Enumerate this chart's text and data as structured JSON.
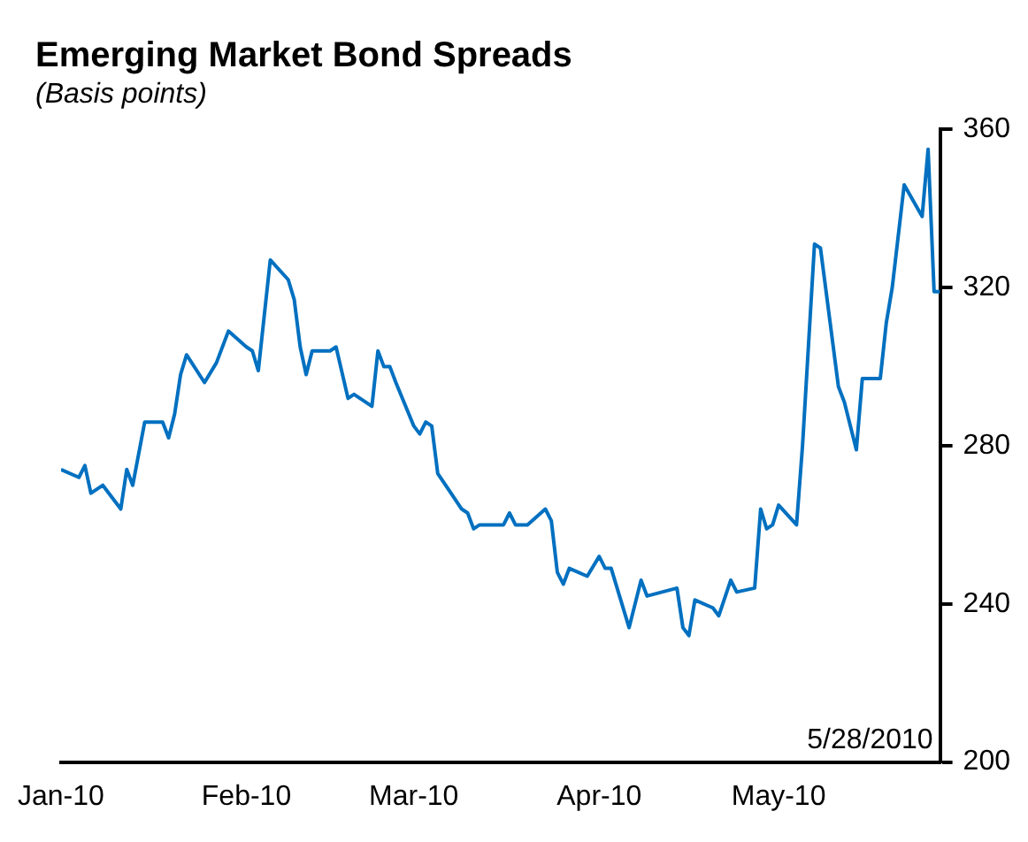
{
  "chart_data": {
    "type": "line",
    "title": "Emerging Market Bond Spreads",
    "subtitle": "(Basis points)",
    "annotations": [
      "5/28/2010"
    ],
    "x": [
      "2010-01-01",
      "2010-01-04",
      "2010-01-05",
      "2010-01-06",
      "2010-01-08",
      "2010-01-11",
      "2010-01-12",
      "2010-01-13",
      "2010-01-14",
      "2010-01-15",
      "2010-01-18",
      "2010-01-19",
      "2010-01-20",
      "2010-01-21",
      "2010-01-22",
      "2010-01-25",
      "2010-01-27",
      "2010-01-29",
      "2010-02-01",
      "2010-02-02",
      "2010-02-03",
      "2010-02-05",
      "2010-02-08",
      "2010-02-09",
      "2010-02-10",
      "2010-02-11",
      "2010-02-12",
      "2010-02-15",
      "2010-02-16",
      "2010-02-18",
      "2010-02-19",
      "2010-02-22",
      "2010-02-23",
      "2010-02-24",
      "2010-02-25",
      "2010-02-26",
      "2010-03-01",
      "2010-03-02",
      "2010-03-03",
      "2010-03-04",
      "2010-03-05",
      "2010-03-09",
      "2010-03-10",
      "2010-03-11",
      "2010-03-12",
      "2010-03-16",
      "2010-03-17",
      "2010-03-18",
      "2010-03-19",
      "2010-03-20",
      "2010-03-23",
      "2010-03-24",
      "2010-03-25",
      "2010-03-26",
      "2010-03-27",
      "2010-03-30",
      "2010-04-01",
      "2010-04-02",
      "2010-04-03",
      "2010-04-06",
      "2010-04-08",
      "2010-04-09",
      "2010-04-14",
      "2010-04-15",
      "2010-04-16",
      "2010-04-17",
      "2010-04-20",
      "2010-04-21",
      "2010-04-23",
      "2010-04-24",
      "2010-04-27",
      "2010-04-28",
      "2010-04-29",
      "2010-04-30",
      "2010-05-01",
      "2010-05-04",
      "2010-05-05",
      "2010-05-07",
      "2010-05-08",
      "2010-05-11",
      "2010-05-12",
      "2010-05-14",
      "2010-05-15",
      "2010-05-18",
      "2010-05-19",
      "2010-05-20",
      "2010-05-22",
      "2010-05-25",
      "2010-05-26",
      "2010-05-27",
      "2010-05-28"
    ],
    "series": [
      {
        "color": "#0070c0",
        "values": [
          274,
          272,
          275,
          268,
          270,
          264,
          274,
          270,
          278,
          286,
          286,
          282,
          288,
          298,
          303,
          296,
          301,
          309,
          305,
          304,
          299,
          327,
          322,
          317,
          305,
          298,
          304,
          304,
          305,
          292,
          293,
          290,
          304,
          300,
          300,
          296,
          285,
          283,
          286,
          285,
          273,
          264,
          263,
          259,
          260,
          260,
          263,
          260,
          260,
          260,
          264,
          261,
          248,
          245,
          249,
          247,
          252,
          249,
          249,
          234,
          246,
          242,
          244,
          234,
          232,
          241,
          239,
          237,
          246,
          243,
          244,
          264,
          259,
          260,
          265,
          260,
          280,
          331,
          330,
          295,
          291,
          279,
          297,
          297,
          311,
          320,
          346,
          338,
          355,
          319,
          319
        ]
      }
    ],
    "xlim": [
      "2010-01-01",
      "2010-05-28"
    ],
    "xticks": [
      {
        "value": "2010-01-01",
        "label": "Jan-10"
      },
      {
        "value": "2010-02-01",
        "label": "Feb-10"
      },
      {
        "value": "2010-03-01",
        "label": "Mar-10"
      },
      {
        "value": "2010-04-01",
        "label": "Apr-10"
      },
      {
        "value": "2010-05-01",
        "label": "May-10"
      }
    ],
    "ylim": [
      200,
      360
    ],
    "yticks": [
      200,
      240,
      280,
      320,
      360
    ],
    "marker": "none",
    "line_style": "solid"
  }
}
